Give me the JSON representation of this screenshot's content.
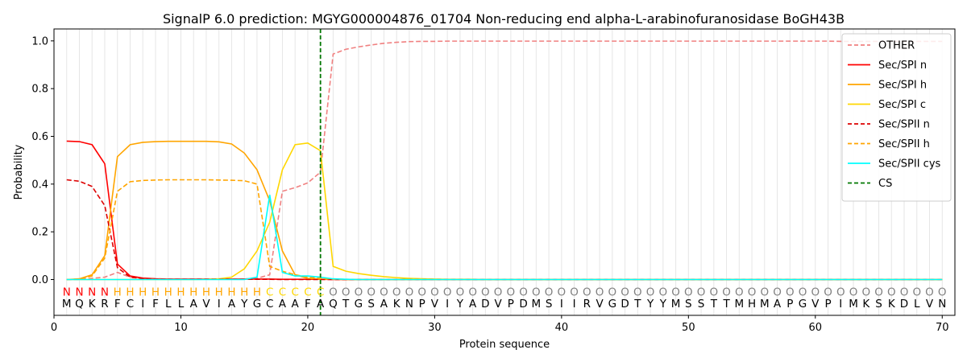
{
  "chart_data": {
    "type": "line",
    "title": "SignalP 6.0 prediction: MGYG000004876_01704 Non-reducing end alpha-L-arabinofuranosidase BoGH43B",
    "xlabel": "Protein sequence",
    "ylabel": "Probability",
    "xlim": [
      0,
      71
    ],
    "ylim": [
      -0.15,
      1.05
    ],
    "xticks": [
      0,
      10,
      20,
      30,
      40,
      50,
      60,
      70
    ],
    "yticks": [
      0.0,
      0.2,
      0.4,
      0.6,
      0.8,
      1.0
    ],
    "xtick_labels": [
      "0",
      "10",
      "20",
      "30",
      "40",
      "50",
      "60",
      "70"
    ],
    "ytick_labels": [
      "0.0",
      "0.2",
      "0.4",
      "0.6",
      "0.8",
      "1.0"
    ],
    "grid": "vertical lines at each residue",
    "legend_position": "top-right",
    "cleavage_site": 21,
    "sequence": "MQKRFCIFLLAVIAYGCAAFAQTGSAKNPVIYADVPDMSIIRVGDTYYMSSTTMHMAPGVPIMKSKDLVN",
    "region_labels": "NNNNHHHHHHHHHHHHCCCCCOOOOOOOOOOOOOOOOOOOOOOOOOOOOOOOOOOOOOOOOOOOOOOOOO",
    "region_colors": {
      "N": "#ff0000",
      "H": "#ffa500",
      "C": "#ffd700",
      "O": "#808080"
    },
    "series": [
      {
        "name": "OTHER",
        "color": "#f08080",
        "dash": true,
        "values": [
          0.0,
          0.0,
          0.005,
          0.01,
          0.03,
          0.01,
          0.005,
          0.003,
          0.002,
          0.002,
          0.002,
          0.002,
          0.002,
          0.002,
          0.003,
          0.005,
          0.02,
          0.37,
          0.385,
          0.405,
          0.45,
          0.945,
          0.965,
          0.975,
          0.983,
          0.99,
          0.994,
          0.997,
          0.998,
          0.998,
          0.999,
          0.999,
          0.999,
          0.999,
          0.999,
          0.999,
          0.999,
          0.999,
          0.999,
          0.999,
          0.999,
          0.999,
          0.999,
          0.999,
          0.999,
          0.999,
          0.999,
          0.999,
          0.999,
          0.999,
          0.999,
          0.999,
          0.999,
          0.999,
          0.999,
          0.999,
          0.999,
          0.999,
          0.999,
          0.999,
          0.999,
          0.998,
          0.998,
          0.998,
          0.998,
          0.998,
          0.998,
          0.998,
          0.998,
          0.998
        ]
      },
      {
        "name": "Sec/SPI n",
        "color": "#ff0000",
        "dash": false,
        "values": [
          0.58,
          0.578,
          0.565,
          0.485,
          0.065,
          0.015,
          0.006,
          0.003,
          0.002,
          0.002,
          0.002,
          0.002,
          0.002,
          0.002,
          0.002,
          0.002,
          0.002,
          0.001,
          0.001,
          0.001,
          0.001,
          0.0,
          0.0,
          0.0,
          0.0,
          0.0,
          0.0,
          0.0,
          0.0,
          0.0,
          0.0,
          0.0,
          0.0,
          0.0,
          0.0,
          0.0,
          0.0,
          0.0,
          0.0,
          0.0,
          0.0,
          0.0,
          0.0,
          0.0,
          0.0,
          0.0,
          0.0,
          0.0,
          0.0,
          0.0,
          0.0,
          0.0,
          0.0,
          0.0,
          0.0,
          0.0,
          0.0,
          0.0,
          0.0,
          0.0,
          0.0,
          0.0,
          0.0,
          0.0,
          0.0,
          0.0,
          0.0,
          0.0,
          0.0,
          0.0
        ]
      },
      {
        "name": "Sec/SPI h",
        "color": "#ffa500",
        "dash": false,
        "values": [
          0.0,
          0.003,
          0.02,
          0.1,
          0.515,
          0.565,
          0.575,
          0.578,
          0.579,
          0.579,
          0.579,
          0.579,
          0.577,
          0.568,
          0.53,
          0.46,
          0.33,
          0.12,
          0.02,
          0.005,
          0.002,
          0.001,
          0.0,
          0.0,
          0.0,
          0.0,
          0.0,
          0.0,
          0.0,
          0.0,
          0.0,
          0.0,
          0.0,
          0.0,
          0.0,
          0.0,
          0.0,
          0.0,
          0.0,
          0.0,
          0.0,
          0.0,
          0.0,
          0.0,
          0.0,
          0.0,
          0.0,
          0.0,
          0.0,
          0.0,
          0.0,
          0.0,
          0.0,
          0.0,
          0.0,
          0.0,
          0.0,
          0.0,
          0.0,
          0.0,
          0.0,
          0.0,
          0.0,
          0.0,
          0.0,
          0.0,
          0.0,
          0.0,
          0.0,
          0.0
        ]
      },
      {
        "name": "Sec/SPI c",
        "color": "#ffd700",
        "dash": false,
        "values": [
          0.0,
          0.0,
          0.0,
          0.0,
          0.0,
          0.0,
          0.0,
          0.0,
          0.0,
          0.0,
          0.0,
          0.001,
          0.003,
          0.01,
          0.045,
          0.12,
          0.24,
          0.46,
          0.565,
          0.572,
          0.54,
          0.055,
          0.035,
          0.025,
          0.018,
          0.012,
          0.008,
          0.005,
          0.003,
          0.002,
          0.001,
          0.001,
          0.001,
          0.0,
          0.0,
          0.0,
          0.0,
          0.0,
          0.0,
          0.0,
          0.0,
          0.0,
          0.0,
          0.0,
          0.0,
          0.0,
          0.0,
          0.0,
          0.0,
          0.0,
          0.0,
          0.0,
          0.0,
          0.0,
          0.0,
          0.0,
          0.0,
          0.0,
          0.0,
          0.0,
          0.0,
          0.0,
          0.0,
          0.0,
          0.0,
          0.0,
          0.0,
          0.0,
          0.0,
          0.0
        ]
      },
      {
        "name": "Sec/SPII n",
        "color": "#dd0000",
        "dash": true,
        "values": [
          0.418,
          0.412,
          0.39,
          0.31,
          0.05,
          0.01,
          0.004,
          0.002,
          0.001,
          0.001,
          0.001,
          0.001,
          0.001,
          0.001,
          0.001,
          0.001,
          0.001,
          0.0,
          0.0,
          0.0,
          0.0,
          0.0,
          0.0,
          0.0,
          0.0,
          0.0,
          0.0,
          0.0,
          0.0,
          0.0,
          0.0,
          0.0,
          0.0,
          0.0,
          0.0,
          0.0,
          0.0,
          0.0,
          0.0,
          0.0,
          0.0,
          0.0,
          0.0,
          0.0,
          0.0,
          0.0,
          0.0,
          0.0,
          0.0,
          0.0,
          0.0,
          0.0,
          0.0,
          0.0,
          0.0,
          0.0,
          0.0,
          0.0,
          0.0,
          0.0,
          0.0,
          0.0,
          0.0,
          0.0,
          0.0,
          0.0,
          0.0,
          0.0,
          0.0,
          0.0
        ]
      },
      {
        "name": "Sec/SPII h",
        "color": "#ffa500",
        "dash": true,
        "values": [
          0.0,
          0.002,
          0.015,
          0.09,
          0.37,
          0.41,
          0.415,
          0.417,
          0.418,
          0.418,
          0.418,
          0.418,
          0.417,
          0.416,
          0.414,
          0.4,
          0.055,
          0.035,
          0.02,
          0.01,
          0.005,
          0.002,
          0.001,
          0.0,
          0.0,
          0.0,
          0.0,
          0.0,
          0.0,
          0.0,
          0.0,
          0.0,
          0.0,
          0.0,
          0.0,
          0.0,
          0.0,
          0.0,
          0.0,
          0.0,
          0.0,
          0.0,
          0.0,
          0.0,
          0.0,
          0.0,
          0.0,
          0.0,
          0.0,
          0.0,
          0.0,
          0.0,
          0.0,
          0.0,
          0.0,
          0.0,
          0.0,
          0.0,
          0.0,
          0.0,
          0.0,
          0.0,
          0.0,
          0.0,
          0.0,
          0.0,
          0.0,
          0.0,
          0.0,
          0.0
        ]
      },
      {
        "name": "Sec/SPII cys",
        "color": "#00ffff",
        "dash": false,
        "values": [
          0.0,
          0.0,
          0.0,
          0.0,
          0.0,
          0.0,
          0.0,
          0.0,
          0.0,
          0.0,
          0.0,
          0.0,
          0.0,
          0.0,
          0.0,
          0.01,
          0.355,
          0.03,
          0.015,
          0.015,
          0.01,
          0.003,
          0.001,
          0.0,
          0.0,
          0.0,
          0.0,
          0.0,
          0.0,
          0.0,
          0.0,
          0.0,
          0.0,
          0.0,
          0.0,
          0.0,
          0.0,
          0.0,
          0.0,
          0.0,
          0.0,
          0.0,
          0.0,
          0.0,
          0.0,
          0.0,
          0.0,
          0.0,
          0.0,
          0.0,
          0.0,
          0.0,
          0.0,
          0.0,
          0.0,
          0.0,
          0.0,
          0.0,
          0.0,
          0.0,
          0.0,
          0.0,
          0.0,
          0.0,
          0.0,
          0.0,
          0.0,
          0.0,
          0.0,
          0.0
        ]
      }
    ],
    "cs_legend": {
      "name": "CS",
      "color": "#007700"
    }
  }
}
